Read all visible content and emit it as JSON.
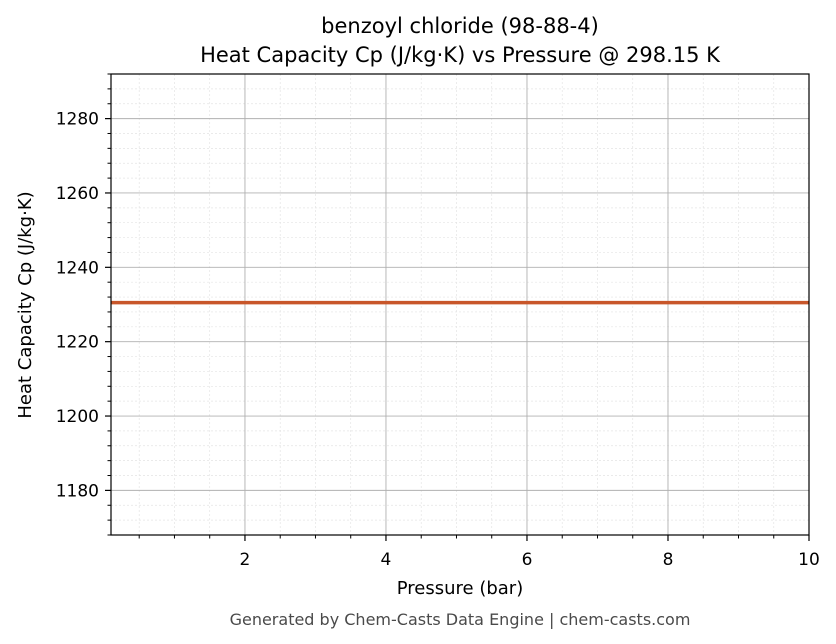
{
  "chart_data": {
    "type": "line",
    "title": "benzoyl chloride (98-88-4)",
    "subtitle": "Heat Capacity Cp (J/kg·K) vs Pressure @ 298.15 K",
    "xlabel": "Pressure (bar)",
    "ylabel": "Heat Capacity Cp (J/kg·K)",
    "xlim": [
      0.1,
      10
    ],
    "ylim": [
      1168,
      1292
    ],
    "x_ticks": [
      2,
      4,
      6,
      8,
      10
    ],
    "y_ticks": [
      1180,
      1200,
      1220,
      1240,
      1260,
      1280
    ],
    "grid": true,
    "series": [
      {
        "color": "#c8562a",
        "x": [
          0.1,
          10
        ],
        "y": [
          1230.5,
          1230.5
        ]
      }
    ]
  },
  "footer": "Generated by Chem-Casts Data Engine | chem-casts.com"
}
